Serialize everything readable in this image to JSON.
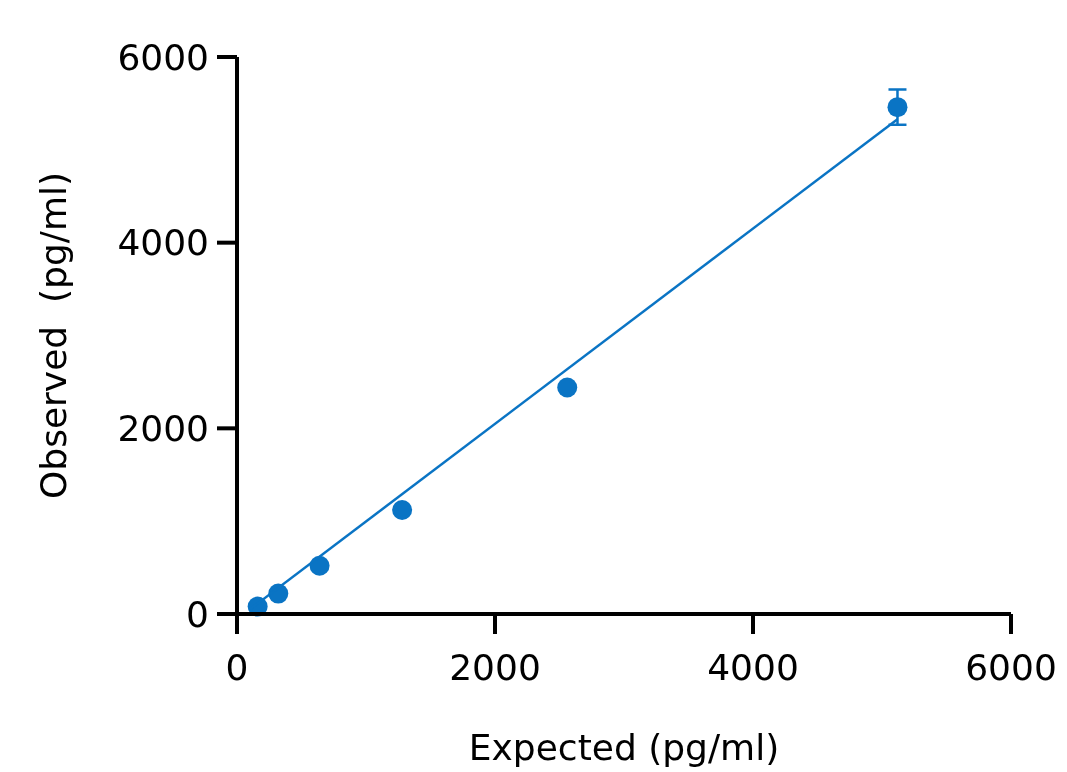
{
  "chart_data": {
    "type": "scatter",
    "xlabel": "Expected (pg/ml)",
    "ylabel": "Observed  (pg/ml)",
    "xlim": [
      0,
      6000
    ],
    "xticks": [
      0,
      2000,
      4000,
      6000
    ],
    "ylim": [
      0,
      6000
    ],
    "yticks": [
      0,
      2000,
      4000,
      6000
    ],
    "grid": false,
    "series": [
      {
        "color": "#0a74c4",
        "marker": "circle",
        "x": [
          160,
          320,
          640,
          1280,
          2560,
          5120
        ],
        "values": [
          80,
          220,
          520,
          1120,
          2440,
          5460
        ],
        "errors": [
          null,
          null,
          null,
          null,
          null,
          190
        ]
      },
      {
        "type": "line",
        "color": "#0a74c4",
        "x": [
          100,
          5120
        ],
        "values": [
          50,
          5330
        ],
        "line_style": "solid"
      }
    ]
  }
}
